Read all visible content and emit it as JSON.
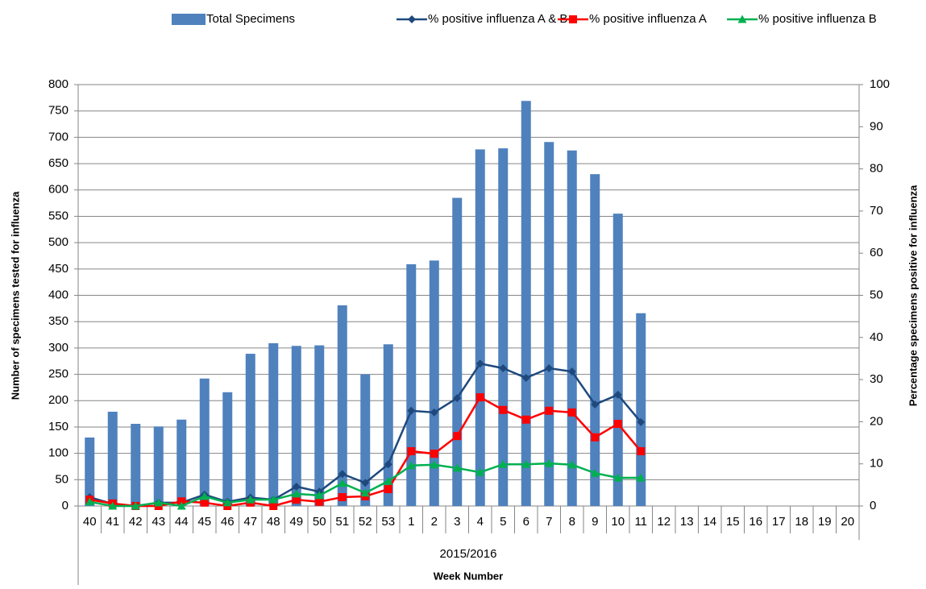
{
  "chart_data": {
    "type": "bar",
    "xlabel": "Week Number",
    "group_label": "2015/2016",
    "ylabel": "Number of specimens tested for influenza",
    "y2label": "Percentage specimens positive for influenza",
    "categories": [
      "40",
      "41",
      "42",
      "43",
      "44",
      "45",
      "46",
      "47",
      "48",
      "49",
      "50",
      "51",
      "52",
      "53",
      "1",
      "2",
      "3",
      "4",
      "5",
      "6",
      "7",
      "8",
      "9",
      "10",
      "11",
      "12",
      "13",
      "14",
      "15",
      "16",
      "17",
      "18",
      "19",
      "20"
    ],
    "series": [
      {
        "name": "Total Specimens",
        "type": "bar",
        "color": "#4f81bd",
        "axis": "y",
        "values": [
          130,
          179,
          156,
          151,
          164,
          242,
          216,
          289,
          309,
          304,
          305,
          381,
          250,
          307,
          459,
          466,
          585,
          677,
          679,
          769,
          691,
          675,
          630,
          555,
          366,
          null,
          null,
          null,
          null,
          null,
          null,
          null,
          null,
          null
        ]
      },
      {
        "name": "% positive influenza A & B",
        "type": "line",
        "marker": "diamond",
        "color": "#1f497d",
        "axis": "y2",
        "values": [
          2.1,
          0.5,
          0,
          0.8,
          0.8,
          2.7,
          1,
          2,
          1.5,
          4.6,
          3.4,
          7.6,
          5.5,
          9.9,
          22.6,
          22.2,
          25.6,
          33.8,
          32.7,
          30.4,
          32.7,
          31.9,
          24.1,
          26.4,
          19.9,
          null,
          null,
          null,
          null,
          null,
          null,
          null,
          null,
          null
        ]
      },
      {
        "name": "% positive influenza A",
        "type": "line",
        "marker": "square",
        "color": "#ff0000",
        "axis": "y2",
        "values": [
          1.5,
          0.6,
          0,
          0,
          1.1,
          0.8,
          0,
          0.8,
          0,
          1.5,
          1,
          2.1,
          2.3,
          4,
          13,
          12.4,
          16.6,
          25.8,
          22.8,
          20.5,
          22.6,
          22.2,
          16.3,
          19.5,
          13,
          null,
          null,
          null,
          null,
          null,
          null,
          null,
          null,
          null
        ]
      },
      {
        "name": "% positive influenza B",
        "type": "line",
        "marker": "triangle",
        "color": "#00b050",
        "axis": "y2",
        "values": [
          1,
          0,
          0,
          0.8,
          0,
          2.3,
          0.8,
          1.5,
          1.5,
          2.9,
          2.5,
          5.4,
          3.1,
          5.9,
          9.6,
          9.8,
          9,
          8,
          9.9,
          9.9,
          10.1,
          9.8,
          7.8,
          6.7,
          6.7,
          null,
          null,
          null,
          null,
          null,
          null,
          null,
          null,
          null
        ]
      }
    ],
    "ylim": [
      0,
      800
    ],
    "yticks": [
      0,
      50,
      100,
      150,
      200,
      250,
      300,
      350,
      400,
      450,
      500,
      550,
      600,
      650,
      700,
      750,
      800
    ],
    "y2lim": [
      0,
      100
    ],
    "y2ticks": [
      0,
      10,
      20,
      30,
      40,
      50,
      60,
      70,
      80,
      90,
      100
    ],
    "grid": true,
    "legend": "top"
  }
}
